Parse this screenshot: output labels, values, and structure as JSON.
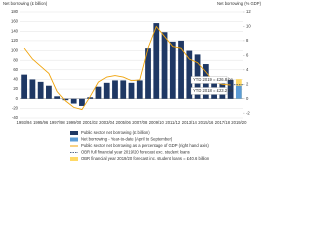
{
  "chart_data": {
    "type": "bar",
    "y_label": "Net borrowing (£ billion)",
    "y2_label": "Net borrowing (% GDP)",
    "categories": [
      "1993/94",
      null,
      "1995/96",
      null,
      "1997/98",
      null,
      "1999/00",
      null,
      "2001/02",
      null,
      "2003/04",
      null,
      "2005/06",
      null,
      "2007/08",
      null,
      "2009/10",
      null,
      "2011/12",
      null,
      "2013/14",
      null,
      "2015/16",
      null,
      "2017/18",
      null,
      "2019/20"
    ],
    "series": [
      {
        "name": "Public sector net borrowing (£ billion)",
        "kind": "bar",
        "color": "#1f3864",
        "values": [
          50,
          40,
          35,
          27,
          5,
          -3,
          -10,
          -15,
          3,
          25,
          33,
          38,
          38,
          33,
          38,
          105,
          157,
          138,
          118,
          120,
          100,
          92,
          72,
          45,
          42,
          39,
          null
        ]
      },
      {
        "name": "Net borrowing - Year-to-date (April to September)",
        "kind": "bar",
        "color": "#5b9bd5",
        "values": [
          null,
          null,
          null,
          null,
          null,
          null,
          null,
          null,
          null,
          null,
          null,
          null,
          null,
          null,
          null,
          null,
          null,
          null,
          null,
          null,
          null,
          null,
          null,
          null,
          null,
          null,
          26.8
        ]
      },
      {
        "name": "Public sector net borrowing as a percentage of GDP (right hand axis)",
        "kind": "line",
        "axis": "y2",
        "color": "#f0a30a",
        "values": [
          7,
          5.5,
          4.5,
          3.5,
          1,
          -0.3,
          -1.2,
          -1.5,
          0.3,
          2.3,
          3,
          3.2,
          3,
          2.5,
          2.6,
          7,
          10,
          8.6,
          7.2,
          7,
          5.5,
          5,
          3.7,
          2.3,
          2,
          1.9,
          null
        ]
      },
      {
        "name": "OBR full financial year 2019/20 forecast exc. student loans",
        "kind": "dash",
        "color": "#1f3864",
        "values": [
          null,
          null,
          null,
          null,
          null,
          null,
          null,
          null,
          null,
          null,
          null,
          null,
          null,
          null,
          null,
          null,
          null,
          null,
          null,
          null,
          null,
          null,
          null,
          null,
          null,
          null,
          29
        ]
      },
      {
        "name": "OBR financial year 2019/20 forecast inc. student loans = £40.6 billion",
        "kind": "bar-back",
        "color": "#ffd966",
        "values": [
          null,
          null,
          null,
          null,
          null,
          null,
          null,
          null,
          null,
          null,
          null,
          null,
          null,
          null,
          null,
          null,
          null,
          null,
          null,
          null,
          null,
          null,
          null,
          null,
          null,
          null,
          40.6
        ]
      }
    ],
    "annotations": [
      "YTD 2019 = £26.8 bn",
      "YTD 2018 = £23.2 bn"
    ],
    "ylim": [
      -40,
      180
    ],
    "yticks": [
      -40,
      -20,
      0,
      20,
      40,
      60,
      80,
      100,
      120,
      140,
      160,
      180
    ],
    "y2lim": [
      -2.667,
      12
    ],
    "y2ticks": [
      -2,
      0,
      2,
      4,
      6,
      8,
      10,
      12
    ],
    "grid": true
  }
}
